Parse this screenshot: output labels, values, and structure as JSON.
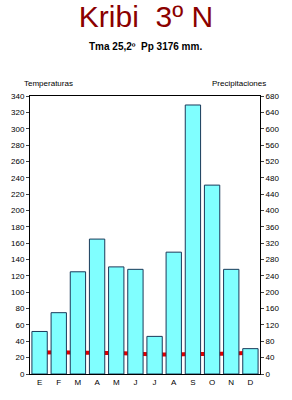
{
  "chart_data": {
    "type": "bar",
    "title": "Kribi  3º N",
    "subtitle": "Tma 25,2º  Pp 3176 mm.",
    "y_label": "Temperaturas",
    "y2_label": "Precipitaciones",
    "categories": [
      "E",
      "F",
      "M",
      "A",
      "M",
      "J",
      "J",
      "A",
      "S",
      "O",
      "N",
      "D"
    ],
    "series": [
      {
        "type": "bar",
        "axis": "y2",
        "color": "#80ffff",
        "values": [
          104,
          150,
          250,
          330,
          262,
          256,
          92,
          298,
          658,
          462,
          256,
          62
        ]
      },
      {
        "type": "line",
        "color": "#e00000",
        "values": [
          26,
          26.5,
          26,
          26,
          25.5,
          25,
          24,
          24,
          24.5,
          24.5,
          25,
          26
        ]
      }
    ],
    "ylim": [
      0,
      340
    ],
    "yticks": [
      0,
      20,
      40,
      60,
      80,
      100,
      120,
      140,
      160,
      180,
      200,
      220,
      240,
      260,
      280,
      300,
      320,
      340
    ],
    "y2lim": [
      0,
      680
    ],
    "y2ticks": [
      0,
      40,
      80,
      120,
      160,
      200,
      240,
      280,
      320,
      360,
      400,
      440,
      480,
      520,
      560,
      600,
      640,
      680
    ],
    "grid": false
  }
}
